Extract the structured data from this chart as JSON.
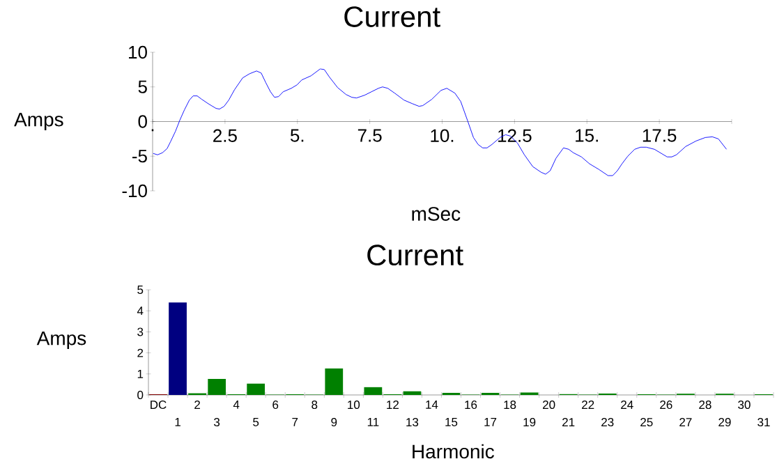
{
  "chart_data": [
    {
      "type": "line",
      "title": "Current",
      "xlabel": "mSec",
      "ylabel": "Amps",
      "color": "#0000ff",
      "x": [
        0.02,
        0.17,
        0.34,
        0.5,
        0.62,
        0.79,
        0.94,
        1.1,
        1.27,
        1.4,
        1.54,
        1.7,
        1.95,
        2.19,
        2.31,
        2.47,
        2.63,
        2.83,
        3.11,
        3.35,
        3.59,
        3.75,
        3.91,
        4.07,
        4.21,
        4.35,
        4.51,
        4.79,
        4.99,
        5.15,
        5.47,
        5.79,
        5.93,
        6.11,
        6.39,
        6.68,
        6.88,
        7.04,
        7.32,
        7.56,
        7.8,
        7.94,
        8.12,
        8.36,
        8.68,
        8.96,
        9.2,
        9.33,
        9.64,
        9.96,
        10.16,
        10.44,
        10.64,
        10.88,
        11.08,
        11.24,
        11.4,
        11.55,
        11.72,
        12.0,
        12.19,
        12.36,
        12.6,
        12.84,
        13.13,
        13.41,
        13.57,
        13.73,
        13.93,
        14.19,
        14.37,
        14.53,
        14.81,
        15.09,
        15.41,
        15.73,
        15.89,
        16.05,
        16.21,
        16.41,
        16.65,
        16.85,
        17.05,
        17.33,
        17.57,
        17.77,
        17.93,
        18.09,
        18.41,
        18.77,
        19.09,
        19.33,
        19.54,
        19.82
      ],
      "values": [
        -4.6,
        -4.8,
        -4.5,
        -3.9,
        -2.9,
        -1.4,
        0.2,
        1.7,
        3.1,
        3.7,
        3.7,
        3.2,
        2.5,
        1.9,
        1.8,
        2.2,
        3.1,
        4.6,
        6.3,
        6.9,
        7.3,
        7.0,
        5.6,
        4.3,
        3.5,
        3.6,
        4.3,
        4.8,
        5.3,
        6.0,
        6.6,
        7.6,
        7.5,
        6.4,
        4.9,
        3.9,
        3.5,
        3.4,
        3.8,
        4.3,
        4.8,
        5.0,
        4.8,
        4.1,
        3.1,
        2.6,
        2.2,
        2.3,
        3.2,
        4.5,
        4.8,
        4.1,
        2.9,
        0.1,
        -2.3,
        -3.3,
        -3.8,
        -3.8,
        -3.3,
        -2.3,
        -1.9,
        -2.1,
        -3.1,
        -4.8,
        -6.5,
        -7.3,
        -7.6,
        -7.1,
        -5.3,
        -3.8,
        -4.0,
        -4.5,
        -5.1,
        -6.1,
        -6.9,
        -7.8,
        -7.8,
        -7.1,
        -6.1,
        -5.0,
        -4.0,
        -3.7,
        -3.7,
        -4.0,
        -4.6,
        -5.1,
        -5.1,
        -4.8,
        -3.6,
        -2.8,
        -2.3,
        -2.2,
        -2.5,
        -4.0
      ],
      "xlim": [
        0,
        20
      ],
      "ylim": [
        -10,
        10
      ],
      "xticks": [
        {
          "value": 0,
          "label": "."
        },
        2.5,
        {
          "value": 5,
          "label": "5."
        },
        7.5,
        {
          "value": 10,
          "label": "10."
        },
        12.5,
        {
          "value": 15,
          "label": "15."
        },
        17.5,
        {
          "value": 20,
          "label": null
        }
      ],
      "yticks": [
        -10,
        -5,
        0,
        5,
        10
      ]
    },
    {
      "type": "bar",
      "title": "Current",
      "xlabel": "Harmonic",
      "ylabel": "Amps",
      "categories": [
        "DC",
        "1",
        "2",
        "3",
        "4",
        "5",
        "6",
        "7",
        "8",
        "9",
        "10",
        "11",
        "12",
        "13",
        "14",
        "15",
        "16",
        "17",
        "18",
        "19",
        "20",
        "21",
        "22",
        "23",
        "24",
        "25",
        "26",
        "27",
        "28",
        "29",
        "30",
        "31"
      ],
      "values": [
        0.03,
        4.4,
        0.08,
        0.76,
        0.03,
        0.54,
        0.02,
        0.03,
        0.02,
        1.26,
        0,
        0.37,
        0.03,
        0.17,
        0,
        0.1,
        0.02,
        0.1,
        0.02,
        0.12,
        0,
        0.04,
        0.02,
        0.07,
        0,
        0.03,
        0.02,
        0.06,
        0,
        0.06,
        0,
        0.03
      ],
      "colors": [
        "#800000",
        "#000080",
        "#008000",
        "#008000",
        "#008000",
        "#008000",
        "#008000",
        "#008000",
        "#008000",
        "#008000",
        "#008000",
        "#008000",
        "#008000",
        "#008000",
        "#008000",
        "#008000",
        "#008000",
        "#008000",
        "#008000",
        "#008000",
        "#008000",
        "#008000",
        "#008000",
        "#008000",
        "#008000",
        "#008000",
        "#008000",
        "#008000",
        "#008000",
        "#008000",
        "#008000",
        "#008000"
      ],
      "ylim": [
        0,
        5
      ],
      "yticks": [
        0,
        1,
        2,
        3,
        4,
        5
      ]
    }
  ]
}
